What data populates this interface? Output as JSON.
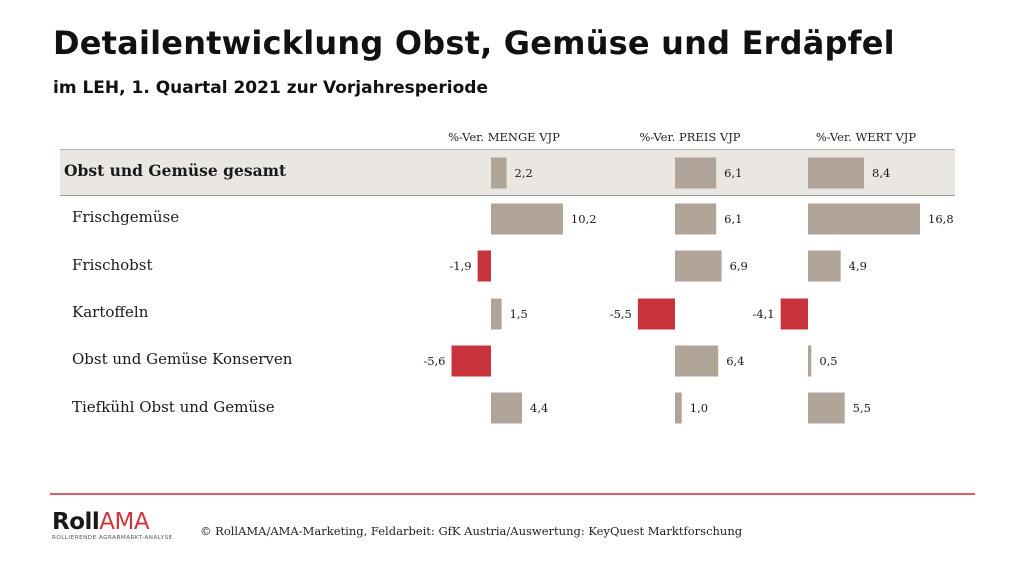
{
  "header": {
    "title": "Detailentwicklung Obst, Gemüse und Erdäpfel",
    "subtitle": "im LEH, 1. Quartal 2021 zur Vorjahresperiode"
  },
  "colors": {
    "positive": "#b0a498",
    "negative": "#c9333c",
    "band": "#eae7e3",
    "footer_line": "#e25c5f",
    "brand_red": "#d0343b"
  },
  "chart_data": {
    "type": "bar",
    "orientation": "horizontal",
    "title": "Detailentwicklung Obst, Gemüse und Erdäpfel",
    "subtitle": "im LEH, 1. Quartal 2021 zur Vorjahresperiode",
    "categories": [
      "Obst und Gemüse gesamt",
      "Frischgemüse",
      "Frischobst",
      "Kartoffeln",
      "Obst und Gemüse Konserven",
      "Tiefkühl Obst und Gemüse"
    ],
    "highlighted_category": "Obst und Gemüse gesamt",
    "series": [
      {
        "name": "%-Ver. MENGE VJP",
        "values": [
          2.2,
          10.2,
          -1.9,
          1.5,
          -5.6,
          4.4
        ],
        "labels": [
          "2,2",
          "10,2",
          "-1,9",
          "1,5",
          "-5,6",
          "4,4"
        ]
      },
      {
        "name": "%-Ver. PREIS VJP",
        "values": [
          6.1,
          6.1,
          6.9,
          -5.5,
          6.4,
          1.0
        ],
        "labels": [
          "6,1",
          "6,1",
          "6,9",
          "-5,5",
          "6,4",
          "1,0"
        ]
      },
      {
        "name": "%-Ver. WERT VJP",
        "values": [
          8.4,
          16.8,
          4.9,
          -4.1,
          0.5,
          5.5
        ],
        "labels": [
          "8,4",
          "16,8",
          "4,9",
          "-4,1",
          "0,5",
          "5,5"
        ]
      }
    ],
    "xlabel": "",
    "ylabel": "",
    "grid": false,
    "legend": "none"
  },
  "footer": {
    "logo_roll": "Roll",
    "logo_ama": "AMA",
    "logo_tagline": "ROLLIERENDE AGRARMARKT-ANALYSE",
    "credit": "© RollAMA/AMA-Marketing, Feldarbeit: GfK Austria/Auswertung: KeyQuest Marktforschung"
  }
}
